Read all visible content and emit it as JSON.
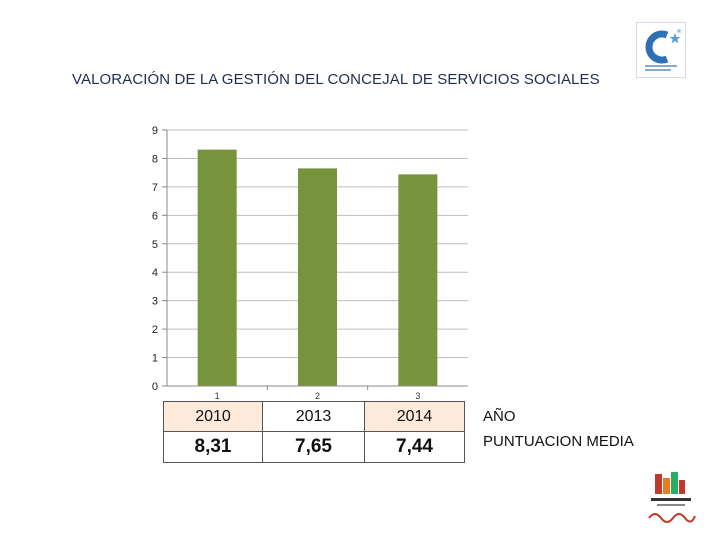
{
  "title": "VALORACIÓN DE LA GESTIÓN DEL CONCEJAL DE SERVICIOS SOCIALES",
  "chart_data": {
    "type": "bar",
    "categories": [
      "1",
      "2",
      "3"
    ],
    "values": [
      8.31,
      7.65,
      7.44
    ],
    "ylim": [
      0,
      9
    ],
    "yticks": [
      "0",
      "1",
      "2",
      "3",
      "4",
      "5",
      "6",
      "7",
      "8",
      "9"
    ],
    "grid": true,
    "bar_color": "#77933c",
    "title": "",
    "xlabel": "",
    "ylabel": ""
  },
  "table": {
    "year_label": "AÑO",
    "score_label": "PUNTUACION MEDIA",
    "years": [
      "2010",
      "2013",
      "2014"
    ],
    "scores": [
      "8,31",
      "7,65",
      "7,44"
    ],
    "header_fill": "#fdeada"
  },
  "logos": {
    "top_right": "blue-c-logo-icon",
    "bottom_right": "las-torres-logo-icon"
  }
}
